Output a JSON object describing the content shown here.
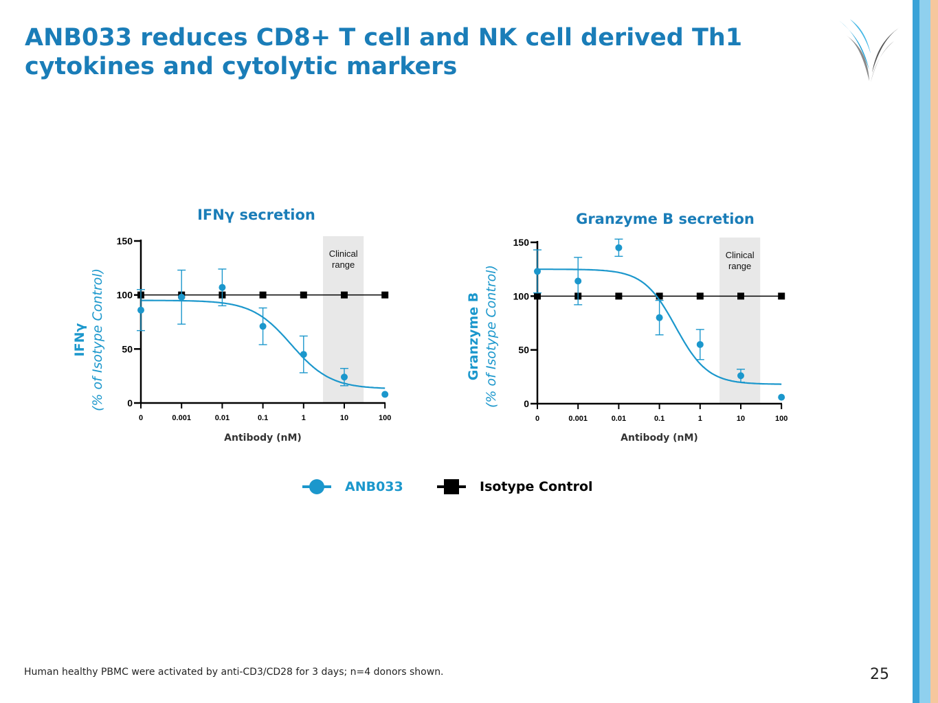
{
  "slide": {
    "title_line1": "ANB033 reduces CD8+ T cell and NK cell derived Th1",
    "title_line2": "cytokines and cytolytic markers",
    "footnote": "Human healthy PBMC were activated by anti-CD3/CD28 for 3 days; n=4 donors shown.",
    "page_number": "25"
  },
  "colors": {
    "title": "#1a7db8",
    "anb033": "#1b97cc",
    "isotype": "#000000",
    "clinical_band": "#e8e8e8",
    "stripe1": "#3aa3d8",
    "stripe2": "#8fd0ee",
    "stripe3": "#f6c79d"
  },
  "legend": {
    "series1_label": "ANB033",
    "series2_label": "Isotype Control",
    "series1_icon": "circle-marker-icon",
    "series2_icon": "square-marker-icon"
  },
  "chart_data": [
    {
      "type": "scatter",
      "title": "IFNγ secretion",
      "ylabel_bold": "IFNγ",
      "ylabel_italic": "(% of Isotype Control)",
      "xlabel": "Antibody (nM)",
      "x_tick_labels": [
        "0",
        "0.001",
        "0.01",
        "0.1",
        "1",
        "10",
        "100"
      ],
      "y_ticks": [
        0,
        50,
        100,
        150
      ],
      "ylim": [
        0,
        150
      ],
      "band_label_line1": "Clinical",
      "band_label_line2": "range",
      "band_range_nM": [
        3,
        30
      ],
      "series": [
        {
          "name": "ANB033",
          "values": [
            86,
            98,
            107,
            71,
            45,
            24,
            8
          ],
          "errors": [
            19,
            25,
            17,
            17,
            17,
            8,
            0
          ],
          "fit": {
            "top": 95,
            "bottom": 13,
            "ic50_nM": 0.5,
            "hill": 0.9
          }
        },
        {
          "name": "Isotype Control",
          "values": [
            100,
            100,
            100,
            100,
            100,
            100,
            100
          ],
          "errors": [
            3,
            2,
            2,
            1,
            1,
            1,
            1
          ]
        }
      ]
    },
    {
      "type": "scatter",
      "title": "Granzyme B secretion",
      "ylabel_bold": "Granzyme B",
      "ylabel_italic": "(% of Isotype Control)",
      "xlabel": "Antibody (nM)",
      "x_tick_labels": [
        "0",
        "0.001",
        "0.01",
        "0.1",
        "1",
        "10",
        "100"
      ],
      "y_ticks": [
        0,
        50,
        100,
        150
      ],
      "ylim": [
        0,
        150
      ],
      "band_label_line1": "Clinical",
      "band_label_line2": "range",
      "band_range_nM": [
        3,
        30
      ],
      "series": [
        {
          "name": "ANB033",
          "values": [
            123,
            114,
            145,
            80,
            55,
            26,
            6
          ],
          "errors": [
            20,
            22,
            8,
            16,
            14,
            6,
            0
          ],
          "fit": {
            "top": 125,
            "bottom": 18,
            "ic50_nM": 0.25,
            "hill": 1.1
          }
        },
        {
          "name": "Isotype Control",
          "values": [
            100,
            100,
            100,
            100,
            100,
            100,
            100
          ],
          "errors": [
            3,
            2,
            2,
            1,
            1,
            1,
            1
          ]
        }
      ]
    }
  ]
}
